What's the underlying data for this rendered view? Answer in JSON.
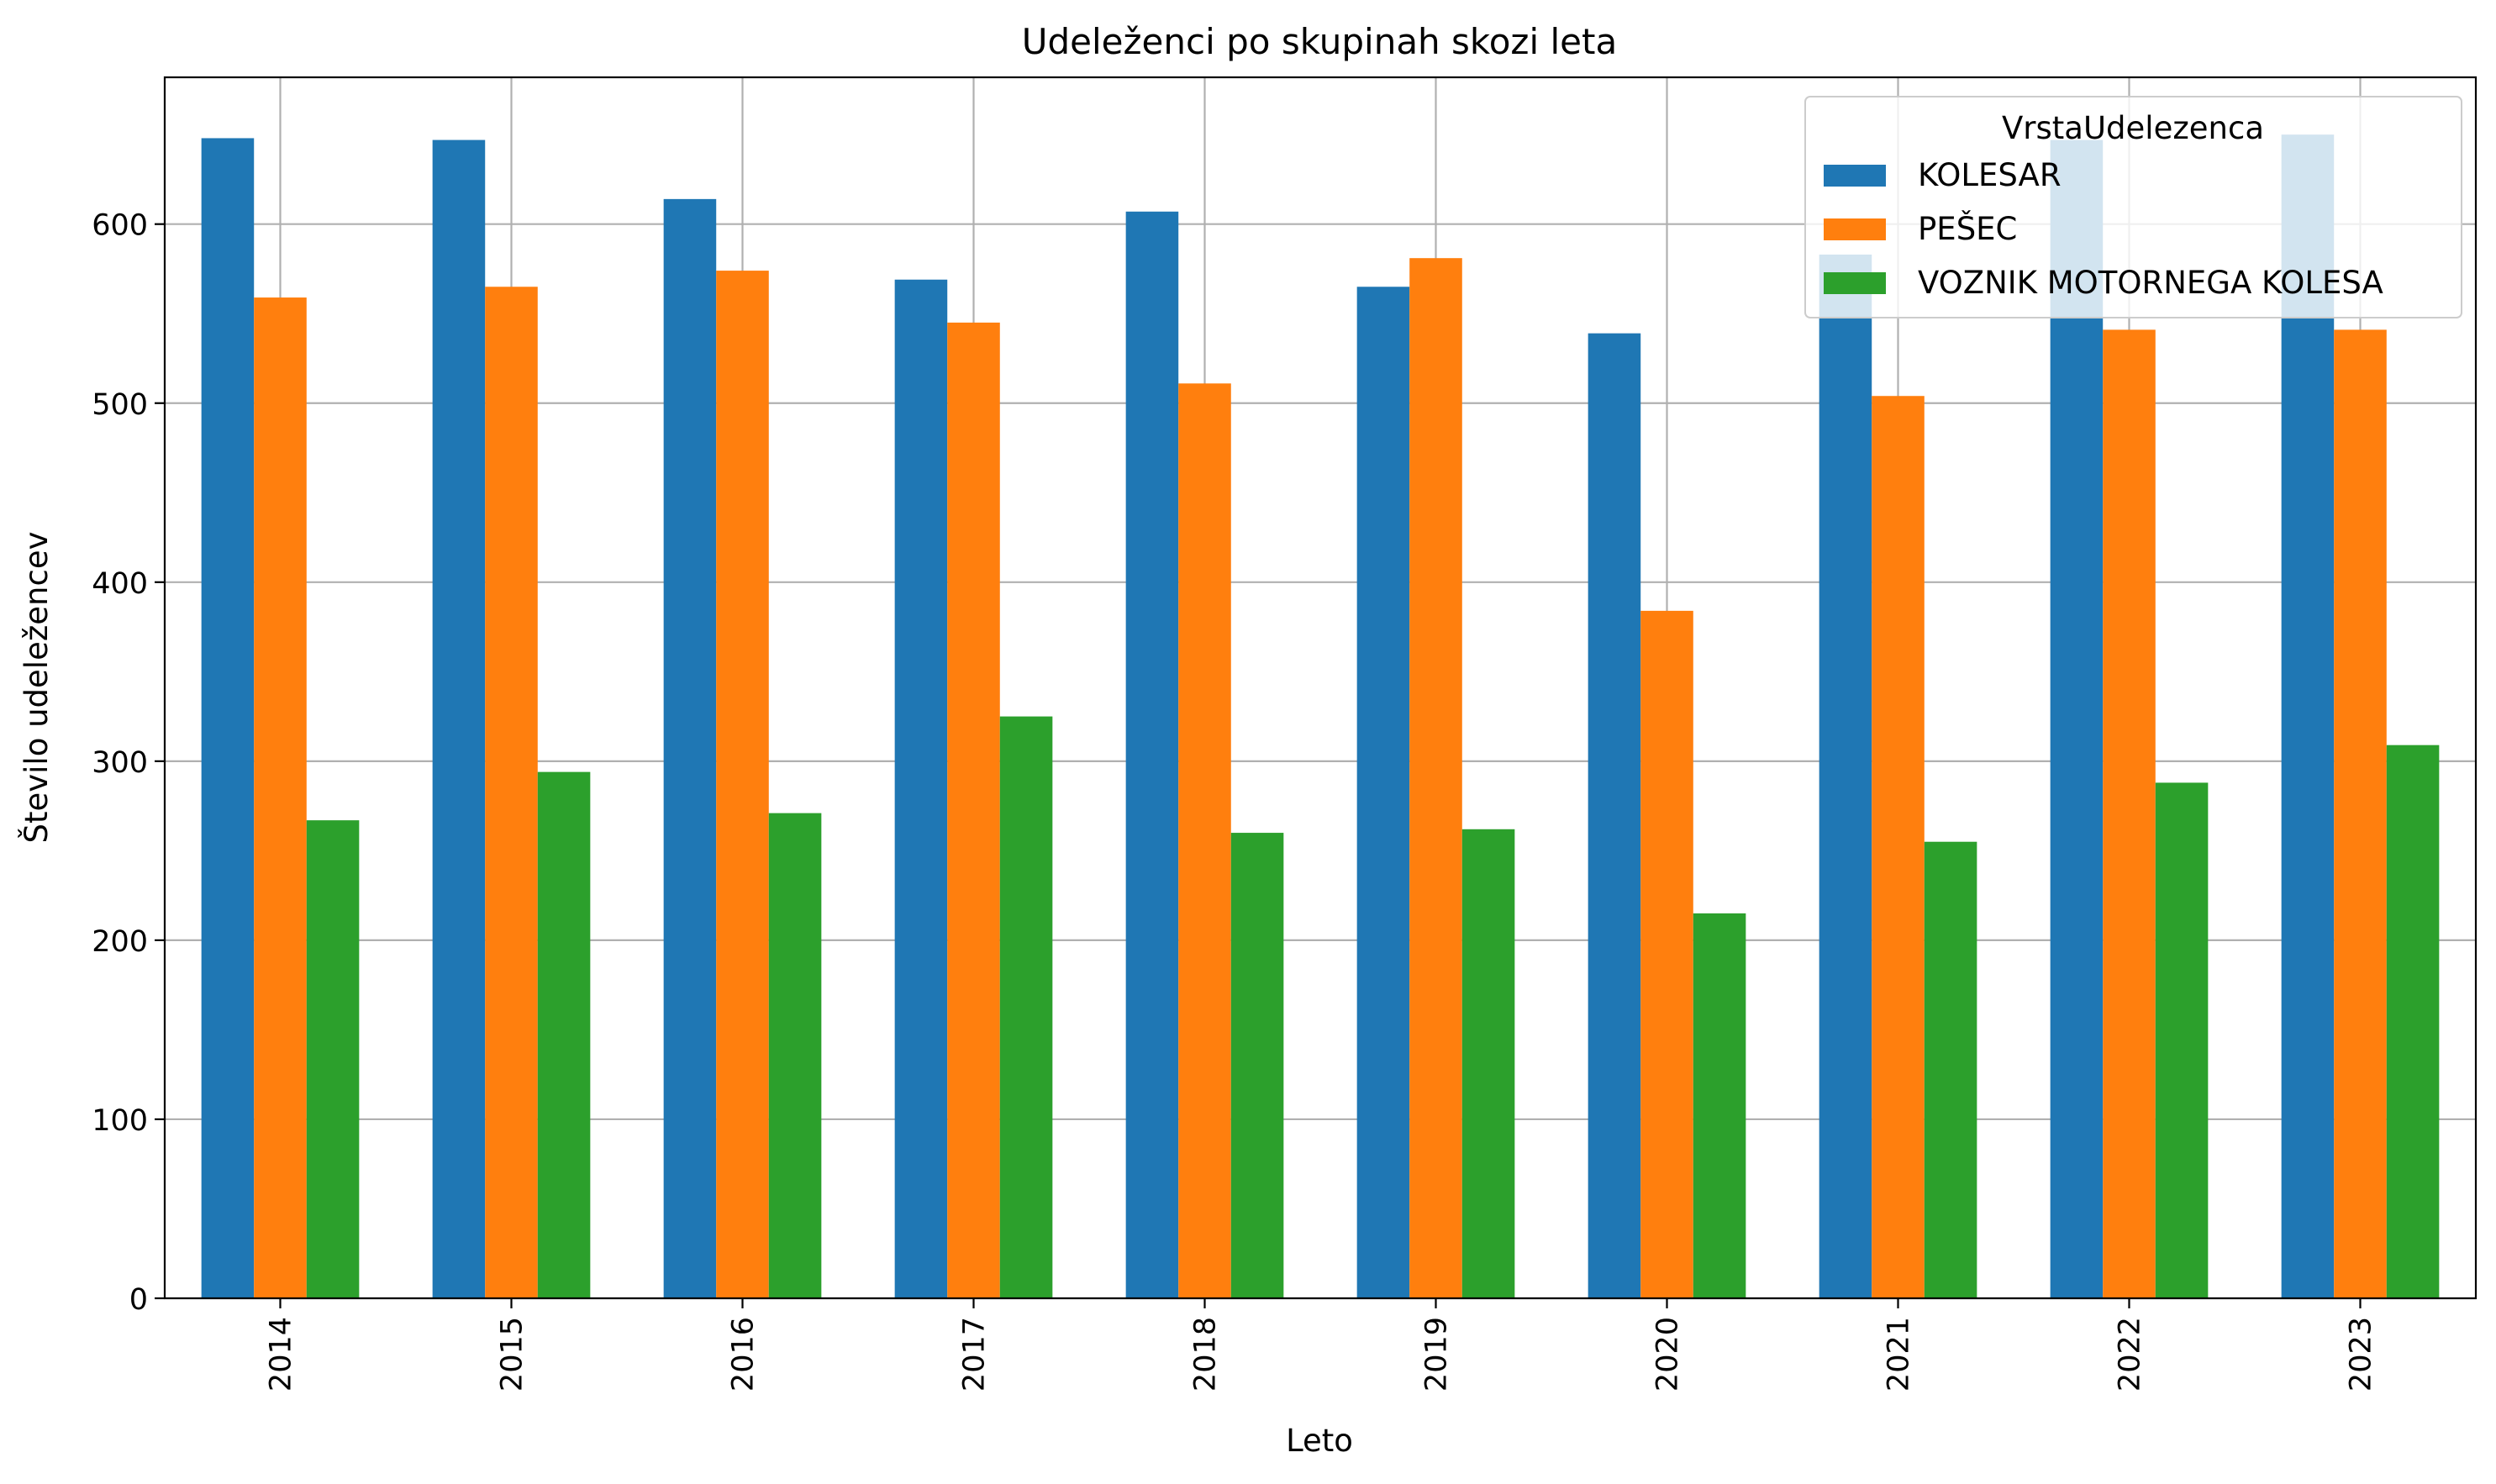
{
  "chart_data": {
    "type": "bar",
    "title": "Udeleženci po skupinah skozi leta",
    "xlabel": "Leto",
    "ylabel": "Število udeležencev",
    "categories": [
      "2014",
      "2015",
      "2016",
      "2017",
      "2018",
      "2019",
      "2020",
      "2021",
      "2022",
      "2023"
    ],
    "yticks": [
      "0",
      "100",
      "200",
      "300",
      "400",
      "500",
      "600"
    ],
    "ylim": [
      0,
      682
    ],
    "grid": true,
    "legend": {
      "title": "VrstaUdelezenca",
      "placement": "top-right"
    },
    "series": [
      {
        "name": "KOLESAR",
        "color": "#1f77b4",
        "values": [
          648,
          647,
          614,
          569,
          607,
          565,
          539,
          583,
          647,
          650
        ]
      },
      {
        "name": "PEŠEC",
        "color": "#ff7f0e",
        "values": [
          559,
          565,
          574,
          545,
          511,
          581,
          384,
          504,
          541,
          541
        ]
      },
      {
        "name": "VOZNIK MOTORNEGA KOLESA",
        "color": "#2ca02c",
        "values": [
          267,
          294,
          271,
          325,
          260,
          262,
          215,
          255,
          288,
          309
        ]
      }
    ]
  }
}
